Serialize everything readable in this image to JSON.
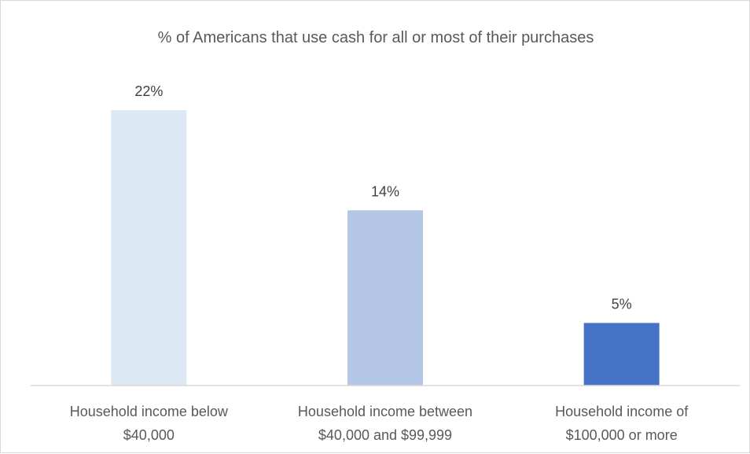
{
  "chart_data": {
    "type": "bar",
    "title": "% of Americans that use cash for all or most of their purchases",
    "xlabel": "",
    "ylabel": "",
    "ylim": [
      0,
      25
    ],
    "grid": false,
    "legend": "none",
    "categories": [
      [
        "Household income below",
        "$40,000"
      ],
      [
        "Household income between",
        "$40,000 and $99,999"
      ],
      [
        "Household income of",
        "$100,000 or more"
      ]
    ],
    "values": [
      22,
      14,
      5
    ],
    "data_labels": [
      "22%",
      "14%",
      "5%"
    ],
    "colors": [
      "#dde8f5",
      "#b4c7e7",
      "#4472c4"
    ]
  }
}
